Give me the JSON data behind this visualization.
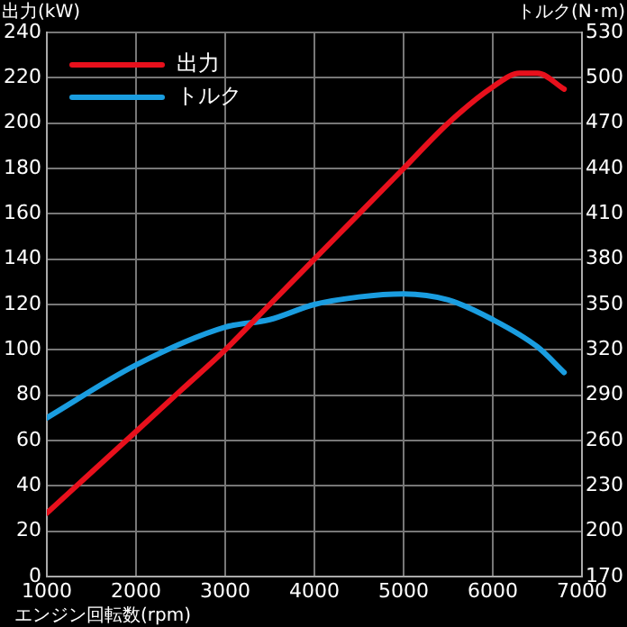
{
  "chart_data": {
    "type": "line",
    "xlabel": "エンジン回転数(rpm)",
    "ylabel": "出力(kW)",
    "y2label": "トルク(N･m)",
    "xlim": [
      1000,
      7000
    ],
    "xticks": [
      1000,
      2000,
      3000,
      4000,
      5000,
      6000,
      7000
    ],
    "ylim": [
      0,
      240
    ],
    "yticks": [
      0,
      20,
      40,
      60,
      80,
      100,
      120,
      140,
      160,
      180,
      200,
      220,
      240
    ],
    "y2lim": [
      170,
      530
    ],
    "y2ticks": [
      170,
      200,
      230,
      260,
      290,
      320,
      350,
      380,
      410,
      440,
      470,
      500,
      530
    ],
    "grid": true,
    "legend": "top left",
    "marker": "none",
    "line_style": "solid",
    "series": [
      {
        "name": "出力",
        "color": "#e8101c",
        "x": [
          1000,
          1500,
          2000,
          2500,
          3000,
          3500,
          4000,
          4500,
          5000,
          5500,
          6000,
          6300,
          6500,
          6800
        ],
        "values": [
          28,
          46,
          64,
          82,
          100,
          120,
          140,
          160,
          180,
          200,
          216,
          222,
          222,
          215
        ]
      },
      {
        "name": "トルク",
        "color": "#1a9de0",
        "axis": "y2",
        "x": [
          1000,
          2000,
          3000,
          3500,
          4000,
          4500,
          5000,
          5500,
          6000,
          6500,
          6800
        ],
        "values": [
          275,
          310,
          335,
          340,
          350,
          355,
          357,
          353,
          340,
          322,
          305
        ]
      }
    ]
  }
}
